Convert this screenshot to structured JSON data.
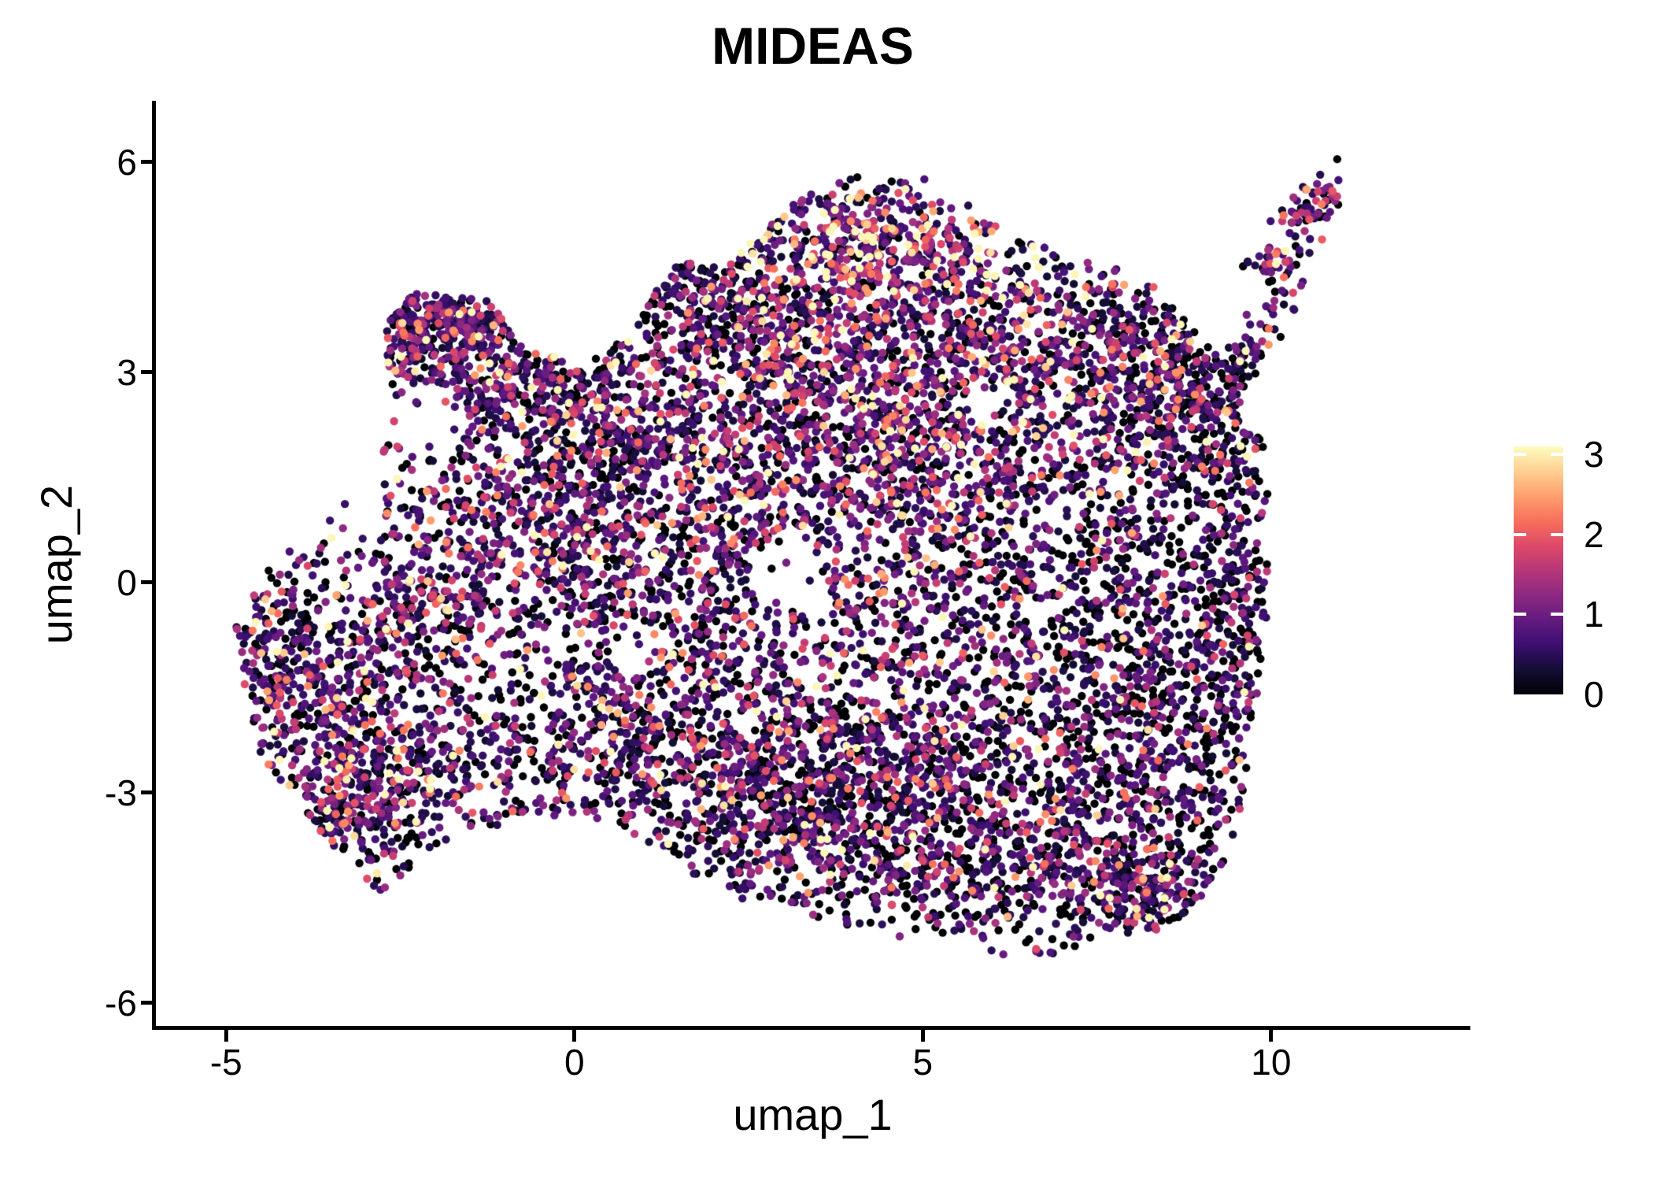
{
  "chart_data": {
    "type": "scatter",
    "title": "MIDEAS",
    "xlabel": "umap_1",
    "ylabel": "umap_2",
    "xlim": [
      -6.02,
      12.86
    ],
    "ylim": [
      -6.35,
      6.85
    ],
    "x_ticks": {
      "values": [
        -5,
        0,
        5,
        10
      ],
      "labels": [
        "-5",
        "0",
        "5",
        "10"
      ]
    },
    "y_ticks": {
      "values": [
        6,
        3,
        0,
        -3,
        -6
      ],
      "labels": [
        "6",
        "3",
        "0",
        "-3",
        "-6"
      ]
    },
    "grid": false,
    "background": "#ffffff",
    "legend_position": "right",
    "colorbar": {
      "vmin": 0,
      "vmax": 3.1,
      "ticks": {
        "values": [
          0,
          1,
          2,
          3
        ],
        "labels": [
          "0",
          "1",
          "2",
          "3"
        ]
      },
      "colormap": "magma",
      "stops": [
        [
          0.0,
          "#000004"
        ],
        [
          0.1,
          "#140e36"
        ],
        [
          0.2,
          "#3b0f70"
        ],
        [
          0.3,
          "#641a80"
        ],
        [
          0.4,
          "#8c2981"
        ],
        [
          0.5,
          "#b73779"
        ],
        [
          0.6,
          "#de4968"
        ],
        [
          0.7,
          "#f7705c"
        ],
        [
          0.8,
          "#fe9f6d"
        ],
        [
          0.9,
          "#fecf92"
        ],
        [
          1.0,
          "#fcfdbf"
        ]
      ]
    },
    "point_radius_px": 5.2,
    "n_points_approx": 11000,
    "seed": 123457,
    "expression_base": 0.25,
    "expression_cap": 3.05,
    "clip_polygon": [
      [
        -4.9,
        -0.6
      ],
      [
        -4.55,
        -2.4
      ],
      [
        -3.7,
        -3.5
      ],
      [
        -2.8,
        -4.5
      ],
      [
        -2.0,
        -3.85
      ],
      [
        -1.0,
        -3.5
      ],
      [
        0.0,
        -3.3
      ],
      [
        0.9,
        -3.6
      ],
      [
        2.0,
        -4.4
      ],
      [
        3.6,
        -4.85
      ],
      [
        5.2,
        -5.15
      ],
      [
        6.6,
        -5.45
      ],
      [
        7.6,
        -5.15
      ],
      [
        8.7,
        -4.9
      ],
      [
        9.4,
        -3.9
      ],
      [
        9.75,
        -2.4
      ],
      [
        9.95,
        -0.3
      ],
      [
        10.0,
        1.6
      ],
      [
        9.62,
        2.7
      ],
      [
        10.5,
        4.5
      ],
      [
        11.3,
        5.9
      ],
      [
        10.45,
        5.25
      ],
      [
        9.3,
        3.2
      ],
      [
        8.9,
        3.6
      ],
      [
        8.2,
        4.35
      ],
      [
        7.0,
        4.7
      ],
      [
        5.9,
        5.2
      ],
      [
        5.0,
        5.85
      ],
      [
        3.9,
        5.85
      ],
      [
        2.9,
        5.25
      ],
      [
        2.25,
        4.55
      ],
      [
        1.4,
        4.55
      ],
      [
        0.85,
        3.6
      ],
      [
        0.1,
        3.15
      ],
      [
        -0.7,
        3.3
      ],
      [
        -1.25,
        4.05
      ],
      [
        -2.3,
        4.15
      ],
      [
        -2.8,
        3.55
      ],
      [
        -2.55,
        2.5
      ],
      [
        -3.2,
        1.3
      ],
      [
        -3.9,
        0.6
      ],
      [
        -4.5,
        0.1
      ]
    ],
    "holes": [
      {
        "cx": -2.1,
        "cy": 2.3,
        "rx": 0.5,
        "ry": 0.55,
        "p": 0.85
      },
      {
        "cx": 3.05,
        "cy": 0.1,
        "rx": 0.55,
        "ry": 0.55,
        "p": 0.8
      },
      {
        "cx": 0.95,
        "cy": -0.95,
        "rx": 0.45,
        "ry": 0.4,
        "p": 0.8
      },
      {
        "cx": 5.9,
        "cy": 2.55,
        "rx": 0.42,
        "ry": 0.38,
        "p": 0.7
      }
    ],
    "blobs": [
      {
        "n": 380,
        "cx": 4.2,
        "cy": 4.9,
        "sx": 1.2,
        "sy": 0.45,
        "rot": -8,
        "p0": 0.1,
        "em": 1.6
      },
      {
        "n": 730,
        "cx": 4.4,
        "cy": 3.7,
        "sx": 1.7,
        "sy": 0.8,
        "rot": 0,
        "p0": 0.2,
        "em": 1.1
      },
      {
        "n": 430,
        "cx": 6.9,
        "cy": 3.1,
        "sx": 1.2,
        "sy": 0.85,
        "rot": 0,
        "p0": 0.3,
        "em": 0.95
      },
      {
        "n": 270,
        "cx": 8.6,
        "cy": 3.1,
        "sx": 0.8,
        "sy": 0.75,
        "rot": 0,
        "p0": 0.38,
        "em": 0.85
      },
      {
        "n": 640,
        "cx": 4.2,
        "cy": 1.9,
        "sx": 1.6,
        "sy": 0.75,
        "rot": 0,
        "p0": 0.24,
        "em": 1.0
      },
      {
        "n": 175,
        "cx": -1.75,
        "cy": 3.72,
        "sx": 0.5,
        "sy": 0.2,
        "rot": -6,
        "p0": 0.12,
        "em": 0.85
      },
      {
        "n": 230,
        "cx": -1.05,
        "cy": 2.9,
        "sx": 0.75,
        "sy": 0.5,
        "rot": 0,
        "p0": 0.24,
        "em": 0.9
      },
      {
        "n": 490,
        "cx": -0.45,
        "cy": 1.25,
        "sx": 0.95,
        "sy": 0.8,
        "rot": 0,
        "p0": 0.22,
        "em": 1.0
      },
      {
        "n": 530,
        "cx": 1.6,
        "cy": 0.3,
        "sx": 1.35,
        "sy": 1.15,
        "rot": 0,
        "p0": 0.3,
        "em": 0.9
      },
      {
        "n": 700,
        "cx": 5.6,
        "cy": 0.2,
        "sx": 1.8,
        "sy": 1.3,
        "rot": 0,
        "p0": 0.3,
        "em": 0.9
      },
      {
        "n": 440,
        "cx": 8.3,
        "cy": -0.2,
        "sx": 1.0,
        "sy": 1.5,
        "rot": 0,
        "p0": 0.46,
        "em": 0.7
      },
      {
        "n": 840,
        "cx": 5.7,
        "cy": -2.6,
        "sx": 1.8,
        "sy": 1.05,
        "rot": 0,
        "p0": 0.3,
        "em": 0.85
      },
      {
        "n": 500,
        "cx": 3.9,
        "cy": -3.6,
        "sx": 1.5,
        "sy": 0.8,
        "rot": 0,
        "p0": 0.32,
        "em": 0.8
      },
      {
        "n": 310,
        "cx": 7.0,
        "cy": -4.2,
        "sx": 1.15,
        "sy": 0.6,
        "rot": 0,
        "p0": 0.36,
        "em": 0.75
      },
      {
        "n": 310,
        "cx": 8.9,
        "cy": -2.2,
        "sx": 0.75,
        "sy": 1.2,
        "rot": 0,
        "p0": 0.46,
        "em": 0.7
      },
      {
        "n": 440,
        "cx": -3.3,
        "cy": -1.9,
        "sx": 0.75,
        "sy": 1.05,
        "rot": 0,
        "p0": 0.26,
        "em": 1.0
      },
      {
        "n": 165,
        "cx": -4.25,
        "cy": -0.9,
        "sx": 0.42,
        "sy": 0.75,
        "rot": 0,
        "p0": 0.3,
        "em": 0.95
      },
      {
        "n": 230,
        "cx": -3.1,
        "cy": -3.2,
        "sx": 0.6,
        "sy": 0.6,
        "rot": 0,
        "p0": 0.3,
        "em": 0.95
      },
      {
        "n": 270,
        "cx": -2.2,
        "cy": -0.25,
        "sx": 0.65,
        "sy": 0.85,
        "rot": 0,
        "p0": 0.28,
        "em": 0.95
      },
      {
        "n": 430,
        "cx": 0.6,
        "cy": -1.9,
        "sx": 1.2,
        "sy": 1.0,
        "rot": 0,
        "p0": 0.32,
        "em": 0.85
      },
      {
        "n": 430,
        "cx": 2.6,
        "cy": -2.9,
        "sx": 1.2,
        "sy": 0.9,
        "rot": 0,
        "p0": 0.32,
        "em": 0.85
      },
      {
        "n": 270,
        "cx": 0.6,
        "cy": 2.7,
        "sx": 1.0,
        "sy": 0.75,
        "rot": 0,
        "p0": 0.32,
        "em": 0.9
      },
      {
        "n": 175,
        "cx": 1.9,
        "cy": 4.1,
        "sx": 0.8,
        "sy": 0.55,
        "rot": 0,
        "p0": 0.34,
        "em": 0.95
      },
      {
        "n": 130,
        "cx": 9.55,
        "cy": 0.6,
        "sx": 0.35,
        "sy": 1.4,
        "rot": 0,
        "p0": 0.55,
        "em": 0.6
      },
      {
        "n": 145,
        "cx": 8.25,
        "cy": -4.4,
        "sx": 0.55,
        "sy": 0.35,
        "rot": 0,
        "p0": 0.28,
        "em": 0.95
      },
      {
        "n": 125,
        "cx": -2.35,
        "cy": 3.3,
        "sx": 0.3,
        "sy": 0.45,
        "rot": 0,
        "p0": 0.25,
        "em": 0.85
      },
      {
        "n": 135,
        "cx": 2.6,
        "cy": 3.4,
        "sx": 0.7,
        "sy": 0.9,
        "rot": 0,
        "p0": 0.3,
        "em": 0.95
      },
      {
        "n": 140,
        "cx": -1.2,
        "cy": -2.7,
        "sx": 0.7,
        "sy": 0.5,
        "rot": 0,
        "p0": 0.35,
        "em": 0.8
      },
      {
        "n": 720,
        "cx": 3.2,
        "cy": 0.0,
        "sx": 3.8,
        "sy": 2.6,
        "rot": 0,
        "p0": 0.38,
        "em": 0.8
      },
      {
        "n": 145,
        "cx": 9.0,
        "cy": 2.2,
        "sx": 0.5,
        "sy": 0.7,
        "rot": 0,
        "p0": 0.4,
        "em": 0.8
      },
      {
        "n": 70,
        "cx": 10.6,
        "cy": 5.4,
        "sx": 0.28,
        "sy": 0.14,
        "rot": 38,
        "p0": 0.22,
        "em": 1.0,
        "noclip": true
      },
      {
        "n": 30,
        "cx": 9.95,
        "cy": 4.55,
        "sx": 0.16,
        "sy": 0.12,
        "rot": 0,
        "p0": 0.25,
        "em": 1.0,
        "noclip": true
      }
    ],
    "lines": [
      {
        "n": 48,
        "x1": 9.25,
        "y1": 2.3,
        "x2": 10.45,
        "y2": 4.75,
        "jx": 0.14,
        "jy": 0.12,
        "p0": 0.3,
        "em": 0.9
      }
    ]
  }
}
